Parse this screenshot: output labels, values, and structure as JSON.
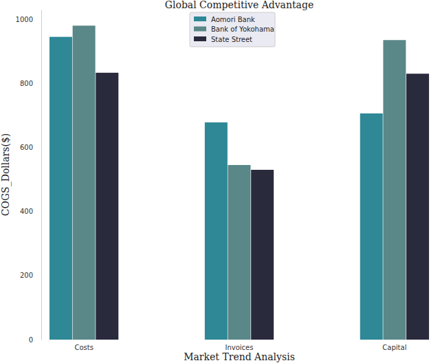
{
  "chart_data": {
    "type": "bar",
    "title": "Global Competitive Advantage",
    "x_label": "Market Trend Analysis",
    "y_label": "COGS_Dollars($)",
    "categories": [
      "Costs",
      "Invoices",
      "Capital"
    ],
    "series": [
      {
        "name": "Aomori Bank",
        "color": "#2e8896",
        "values": [
          945,
          678,
          706
        ]
      },
      {
        "name": "Bank of Yokohama",
        "color": "#5a8787",
        "values": [
          980,
          545,
          935
        ]
      },
      {
        "name": "State Street",
        "color": "#2a2a3d",
        "values": [
          833,
          530,
          830
        ]
      }
    ],
    "ylim": [
      0,
      1030
    ],
    "yticks": [
      0,
      200,
      400,
      600,
      800,
      1000
    ],
    "grid": false,
    "legend": "upper center"
  }
}
